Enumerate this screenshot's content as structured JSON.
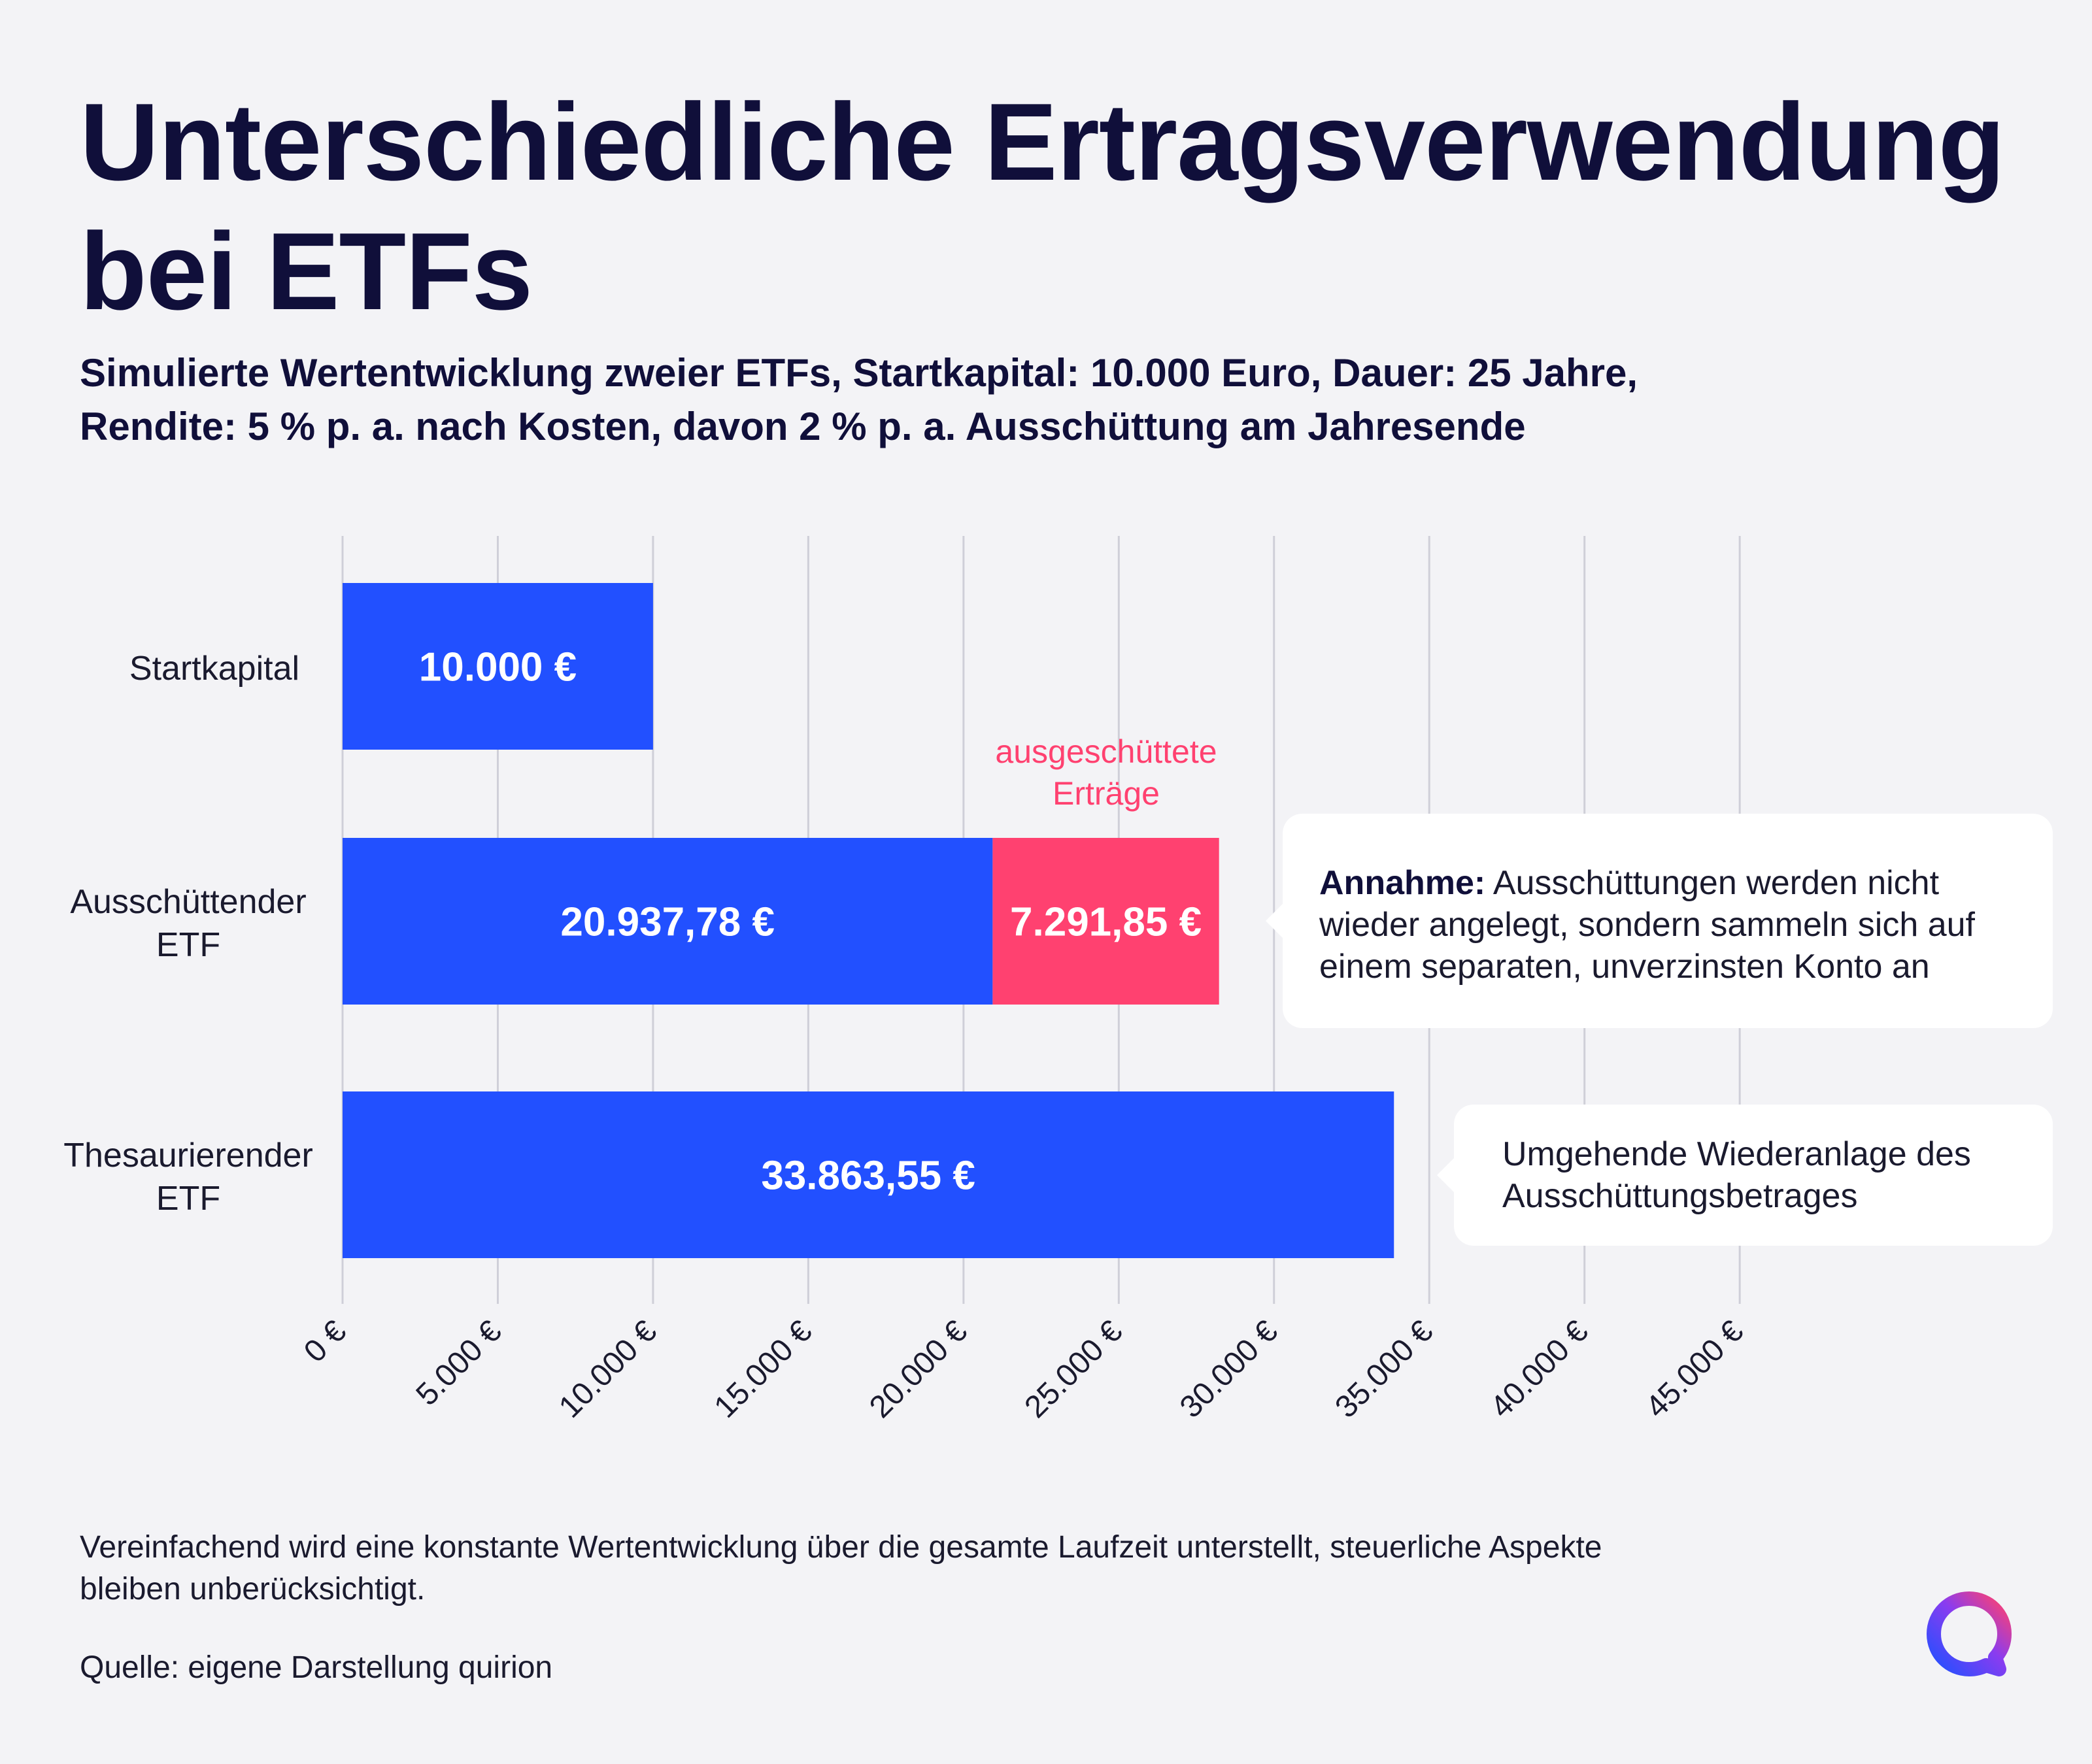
{
  "chart_data": {
    "type": "bar",
    "orientation": "horizontal",
    "stacked": true,
    "title": "Unterschiedliche Ertragsverwendung bei ETFs",
    "subtitle_lines": [
      "Simulierte Wertentwicklung zweier ETFs, Startkapital: 10.000 Euro, Dauer: 25 Jahre,",
      "Rendite: 5 % p. a. nach Kosten, davon 2 % p. a. Ausschüttung am Jahresende"
    ],
    "categories": [
      {
        "label_lines": [
          "Startkapital"
        ]
      },
      {
        "label_lines": [
          "Ausschüttender",
          "ETF"
        ]
      },
      {
        "label_lines": [
          "Thesaurierender",
          "ETF"
        ]
      }
    ],
    "series": [
      {
        "values": [
          10000,
          20937.78,
          33863.55
        ],
        "value_labels": [
          "10.000 €",
          "20.937,78 €",
          "33.863,55 €"
        ],
        "color": "#2250ff"
      },
      {
        "name": "ausgeschüttete Erträge",
        "values": [
          0,
          7291.85,
          0
        ],
        "value_labels": [
          "",
          "7.291,85 €",
          ""
        ],
        "color": "#ff4170"
      }
    ],
    "series_annotation_lines": [
      "ausgeschüttete",
      "Erträge"
    ],
    "x_ticks": [
      0,
      5000,
      10000,
      15000,
      20000,
      25000,
      30000,
      35000,
      40000,
      45000
    ],
    "x_tick_labels": [
      "0 €",
      "5.000 €",
      "10.000 €",
      "15.000 €",
      "20.000 €",
      "25.000 €",
      "30.000 €",
      "35.000 €",
      "40.000 €",
      "45.000 €"
    ],
    "xlim": [
      0,
      45000
    ],
    "grid": true,
    "annotations": [
      {
        "category_index": 1,
        "bold": "Annahme:",
        "text_lines": [
          " Ausschüttungen werden nicht",
          "wieder angelegt, sondern sammeln sich auf",
          "einem separaten, unverzinsten Konto an"
        ]
      },
      {
        "category_index": 2,
        "text_lines": [
          "Umgehende Wiederanlage des",
          "Ausschüttungsbetrages"
        ]
      }
    ]
  },
  "footnote_lines": [
    "Vereinfachend wird eine konstante Wertentwicklung über die gesamte Laufzeit unterstellt, steuerliche Aspekte",
    "bleiben unberücksichtigt."
  ],
  "source": "Quelle: eigene Darstellung quirion",
  "logo_icon": "quirion-logo-icon",
  "colors": {
    "primary": "#2250ff",
    "accent": "#ff4170",
    "text": "#100f3a",
    "background": "#f3f3f6"
  }
}
